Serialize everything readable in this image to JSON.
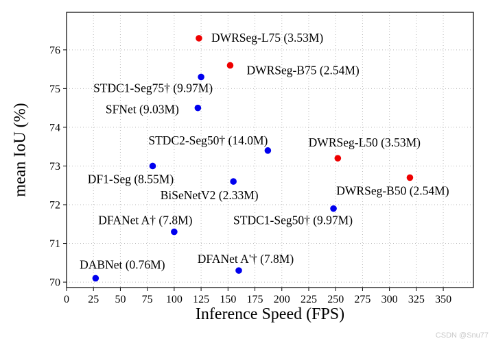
{
  "watermark": "CSDN @Snu77",
  "chart_data": {
    "type": "scatter",
    "title": "",
    "xlabel": "Inference Speed (FPS)",
    "ylabel": "mean IoU (%)",
    "xlim": [
      0,
      378
    ],
    "ylim": [
      69.86,
      76.97
    ],
    "xticks": [
      0,
      25,
      50,
      75,
      100,
      125,
      150,
      175,
      200,
      225,
      250,
      275,
      300,
      325,
      350
    ],
    "yticks": [
      70,
      71,
      72,
      73,
      74,
      75,
      76
    ],
    "grid": true,
    "legend": "none",
    "series": [
      {
        "name": "red-points",
        "color": "#ee0000",
        "points": [
          {
            "label": "DWRSeg-L75 (3.53M)",
            "x": 123,
            "y": 76.3,
            "anchor": "start",
            "dx": 18,
            "dy": 5
          },
          {
            "label": "DWRSeg-B75 (2.54M)",
            "x": 152,
            "y": 75.6,
            "anchor": "start",
            "dx": 24,
            "dy": 13
          },
          {
            "label": "DWRSeg-L50 (3.53M)",
            "x": 252,
            "y": 73.2,
            "anchor": "middle",
            "dx": 39,
            "dy": -17
          },
          {
            "label": "DWRSeg-B50 (2.54M)",
            "x": 319,
            "y": 72.7,
            "anchor": "middle",
            "dx": -25,
            "dy": 25
          }
        ]
      },
      {
        "name": "blue-points",
        "color": "#0000ee",
        "points": [
          {
            "label": "STDC1-Seg75† (9.97M)",
            "x": 125,
            "y": 75.3,
            "anchor": "middle",
            "dx": -70,
            "dy": 22
          },
          {
            "label": "SFNet (9.03M)",
            "x": 122,
            "y": 74.5,
            "anchor": "middle",
            "dx": -81,
            "dy": 8
          },
          {
            "label": "STDC2-Seg50† (14.0M)",
            "x": 187,
            "y": 73.4,
            "anchor": "middle",
            "dx": -87,
            "dy": -9
          },
          {
            "label": "DF1-Seg (8.55M)",
            "x": 80,
            "y": 73.0,
            "anchor": "middle",
            "dx": -32,
            "dy": 25
          },
          {
            "label": "BiSeNetV2 (2.33M)",
            "x": 155,
            "y": 72.6,
            "anchor": "middle",
            "dx": -35,
            "dy": 26
          },
          {
            "label": "STDC1-Seg50† (9.97M)",
            "x": 248,
            "y": 71.9,
            "anchor": "middle",
            "dx": -59,
            "dy": 23
          },
          {
            "label": "DFANet A† (7.8M)",
            "x": 100,
            "y": 71.3,
            "anchor": "middle",
            "dx": -42,
            "dy": -11
          },
          {
            "label": "DABNet (0.76M)",
            "x": 27,
            "y": 70.1,
            "anchor": "middle",
            "dx": 39,
            "dy": -14
          },
          {
            "label": "DFANet A'† (7.8M)",
            "x": 160,
            "y": 70.3,
            "anchor": "middle",
            "dx": 10,
            "dy": -11
          }
        ]
      }
    ]
  }
}
